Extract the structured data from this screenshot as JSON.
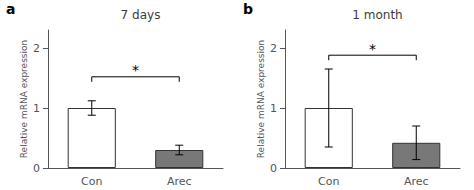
{
  "chart_data": [
    {
      "type": "bar",
      "label": "a",
      "title": "7 days",
      "categories": [
        "Con",
        "Arec"
      ],
      "values": [
        1.0,
        0.3
      ],
      "errors": [
        0.12,
        0.08
      ],
      "colors": [
        "white",
        "#787878"
      ],
      "ylim": [
        0,
        2.3
      ],
      "yticks": [
        0,
        1,
        2
      ],
      "ylabel": "Relative mRNA expression",
      "grid": false,
      "significance": {
        "text": "*",
        "y": 1.52,
        "text_y": 1.58
      }
    },
    {
      "type": "bar",
      "label": "b",
      "title": "1 month",
      "categories": [
        "Con",
        "Arec"
      ],
      "values": [
        1.0,
        0.42
      ],
      "errors": [
        0.65,
        0.28
      ],
      "colors": [
        "white",
        "#787878"
      ],
      "ylim": [
        0,
        2.3
      ],
      "yticks": [
        0,
        1,
        2
      ],
      "ylabel": "Relative mRNA expression",
      "grid": false,
      "significance": {
        "text": "*",
        "y": 1.88,
        "text_y": 1.94
      }
    }
  ]
}
